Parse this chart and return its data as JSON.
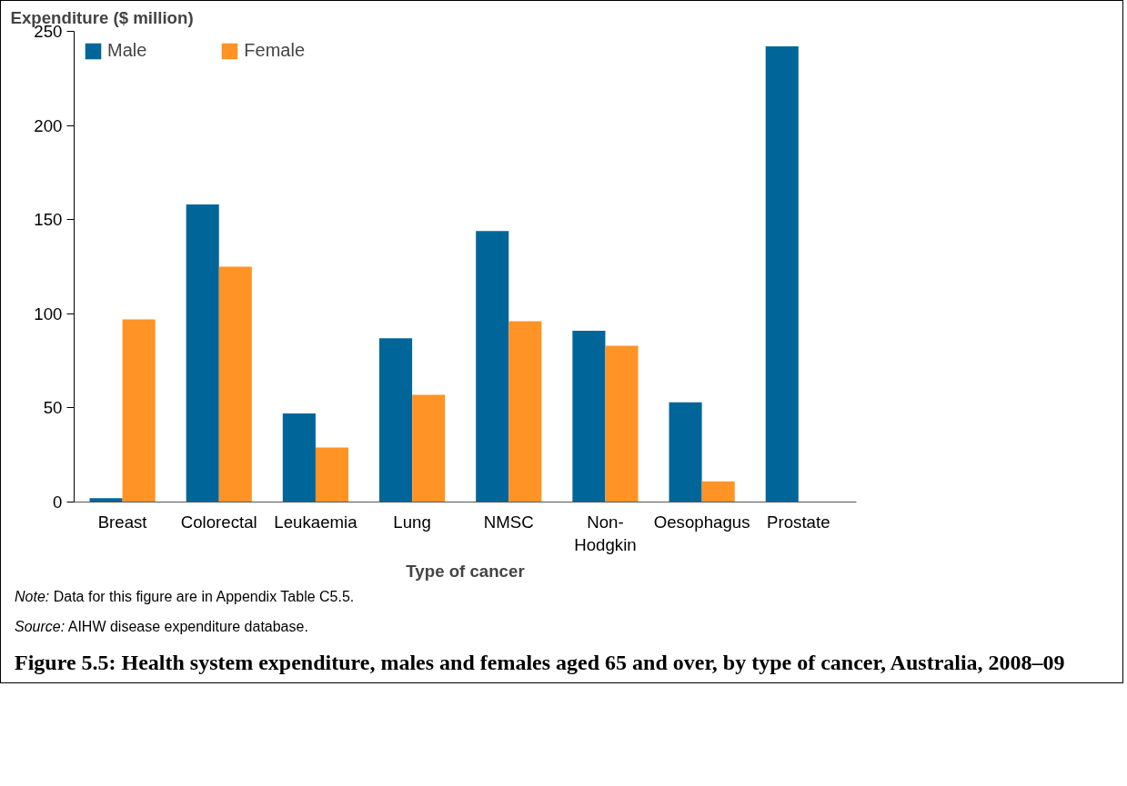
{
  "chart_data": {
    "type": "bar",
    "title": "Figure 5.5: Health system expenditure, males and females aged 65 and over, by type of cancer, Australia, 2008–09",
    "xlabel": "Type of cancer",
    "ylabel": "Expenditure ($ million)",
    "categories": [
      "Breast",
      "Colorectal",
      "Leukaemia",
      "Lung",
      "NMSC",
      "Non-\nHodgkin",
      "Oesophagus",
      "Prostate"
    ],
    "series": [
      {
        "name": "Male",
        "color": "#006699",
        "values": [
          2,
          158,
          47,
          87,
          144,
          91,
          53,
          242
        ]
      },
      {
        "name": "Female",
        "color": "#ff9326",
        "values": [
          97,
          125,
          29,
          57,
          96,
          83,
          11,
          null
        ]
      }
    ],
    "ylim": [
      0,
      250
    ],
    "yticks": [
      0,
      50,
      100,
      150,
      200,
      250
    ],
    "grid": false,
    "legend": "top left",
    "annotations": [
      "Note: Data for this figure are in Appendix Table C5.5.",
      "Source: AIHW disease expenditure database."
    ]
  }
}
